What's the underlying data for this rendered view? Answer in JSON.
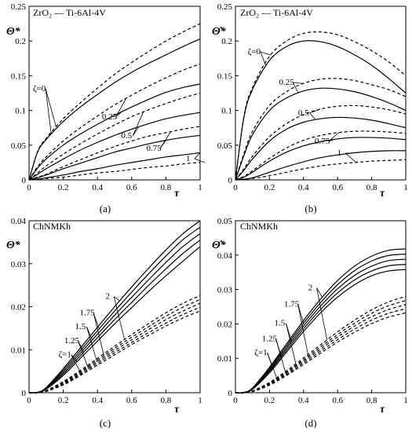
{
  "chart_data": [
    {
      "id": "a",
      "type": "line",
      "caption": "(a)",
      "material": "ZrO₂ — Ti-6Al-4V",
      "ylabel": "Θ*",
      "xlabel": "τ",
      "xlim": [
        0,
        1
      ],
      "ylim": [
        0,
        0.25
      ],
      "xticks": [
        "0",
        "0.2",
        "0.4",
        "0.6",
        "0.8",
        "1"
      ],
      "yticks": [
        "0",
        "0.05",
        "0.1",
        "0.15",
        "0.2",
        "0.25"
      ],
      "grid": false,
      "x": [
        0,
        0.05,
        0.1,
        0.2,
        0.3,
        0.4,
        0.5,
        0.6,
        0.7,
        0.8,
        0.9,
        1.0
      ],
      "series": [
        {
          "curve": "ζ=0",
          "style": "solid",
          "values": [
            0,
            0.04,
            0.058,
            0.084,
            0.105,
            0.123,
            0.14,
            0.155,
            0.168,
            0.18,
            0.192,
            0.203
          ]
        },
        {
          "curve": "ζ=0",
          "style": "dashed",
          "values": [
            0,
            0.041,
            0.06,
            0.088,
            0.111,
            0.132,
            0.152,
            0.169,
            0.185,
            0.2,
            0.213,
            0.225
          ]
        },
        {
          "curve": "0.25",
          "style": "solid",
          "values": [
            0,
            0.017,
            0.03,
            0.05,
            0.066,
            0.08,
            0.093,
            0.105,
            0.116,
            0.126,
            0.133,
            0.138
          ]
        },
        {
          "curve": "0.25",
          "style": "dashed",
          "values": [
            0,
            0.019,
            0.033,
            0.056,
            0.075,
            0.092,
            0.108,
            0.122,
            0.135,
            0.147,
            0.158,
            0.167
          ]
        },
        {
          "curve": "0.5",
          "style": "solid",
          "values": [
            0,
            0.008,
            0.016,
            0.03,
            0.043,
            0.054,
            0.064,
            0.073,
            0.081,
            0.088,
            0.093,
            0.097
          ]
        },
        {
          "curve": "0.5",
          "style": "dashed",
          "values": [
            0,
            0.01,
            0.02,
            0.037,
            0.052,
            0.066,
            0.079,
            0.091,
            0.101,
            0.11,
            0.118,
            0.125
          ]
        },
        {
          "curve": "0.75",
          "style": "solid",
          "values": [
            0,
            0.003,
            0.007,
            0.016,
            0.024,
            0.032,
            0.04,
            0.046,
            0.052,
            0.057,
            0.061,
            0.064
          ]
        },
        {
          "curve": "0.75",
          "style": "dashed",
          "values": [
            0,
            0.004,
            0.008,
            0.019,
            0.029,
            0.039,
            0.048,
            0.056,
            0.063,
            0.068,
            0.073,
            0.077
          ]
        },
        {
          "curve": "1",
          "style": "solid",
          "values": [
            0,
            0.001,
            0.003,
            0.007,
            0.012,
            0.016,
            0.021,
            0.025,
            0.029,
            0.033,
            0.036,
            0.039
          ]
        },
        {
          "curve": "1",
          "style": "dashed",
          "values": [
            0,
            0.001,
            0.002,
            0.004,
            0.007,
            0.01,
            0.012,
            0.015,
            0.018,
            0.02,
            0.023,
            0.025
          ]
        }
      ],
      "annotations": [
        {
          "text": "ζ=0",
          "x": 0.06,
          "y": 0.128
        },
        {
          "text": "0.25",
          "x": 0.47,
          "y": 0.087
        },
        {
          "text": "0.5",
          "x": 0.57,
          "y": 0.06
        },
        {
          "text": "0.75",
          "x": 0.73,
          "y": 0.042
        },
        {
          "text": "1",
          "x": 0.93,
          "y": 0.027
        }
      ]
    },
    {
      "id": "b",
      "type": "line",
      "caption": "(b)",
      "material": "ZrO₂ — Ti-6Al-4V",
      "ylabel": "Θ̂*",
      "xlabel": "τ",
      "xlim": [
        0,
        1
      ],
      "ylim": [
        0,
        0.25
      ],
      "xticks": [
        "0",
        "0.2",
        "0.4",
        "0.6",
        "0.8",
        "1"
      ],
      "yticks": [
        "0",
        "0.05",
        "0.1",
        "0.15",
        "0.2",
        "0.25"
      ],
      "grid": false,
      "x": [
        0,
        0.05,
        0.1,
        0.2,
        0.3,
        0.4,
        0.5,
        0.6,
        0.7,
        0.8,
        0.9,
        1.0
      ],
      "series": [
        {
          "curve": "ζ=0",
          "style": "solid",
          "values": [
            0,
            0.09,
            0.13,
            0.172,
            0.192,
            0.2,
            0.199,
            0.192,
            0.18,
            0.165,
            0.146,
            0.125
          ]
        },
        {
          "curve": "ζ=0",
          "style": "dashed",
          "values": [
            0,
            0.092,
            0.133,
            0.178,
            0.2,
            0.211,
            0.213,
            0.209,
            0.199,
            0.186,
            0.17,
            0.15
          ]
        },
        {
          "curve": "0.25",
          "style": "solid",
          "values": [
            0,
            0.035,
            0.065,
            0.1,
            0.118,
            0.128,
            0.132,
            0.131,
            0.127,
            0.12,
            0.111,
            0.1
          ]
        },
        {
          "curve": "0.25",
          "style": "dashed",
          "values": [
            0,
            0.038,
            0.07,
            0.107,
            0.127,
            0.139,
            0.145,
            0.146,
            0.143,
            0.137,
            0.13,
            0.12
          ]
        },
        {
          "curve": "0.5",
          "style": "solid",
          "values": [
            0,
            0.014,
            0.03,
            0.056,
            0.073,
            0.083,
            0.088,
            0.09,
            0.089,
            0.086,
            0.081,
            0.075
          ]
        },
        {
          "curve": "0.5",
          "style": "dashed",
          "values": [
            0,
            0.016,
            0.034,
            0.062,
            0.081,
            0.094,
            0.102,
            0.106,
            0.107,
            0.105,
            0.101,
            0.095
          ]
        },
        {
          "curve": "0.75",
          "style": "solid",
          "values": [
            0,
            0.004,
            0.011,
            0.027,
            0.04,
            0.049,
            0.055,
            0.059,
            0.061,
            0.061,
            0.06,
            0.058
          ]
        },
        {
          "curve": "0.75",
          "style": "dashed",
          "values": [
            0,
            0.005,
            0.013,
            0.031,
            0.046,
            0.057,
            0.064,
            0.068,
            0.07,
            0.07,
            0.069,
            0.067
          ]
        },
        {
          "curve": "1",
          "style": "solid",
          "values": [
            0,
            0.001,
            0.003,
            0.011,
            0.019,
            0.026,
            0.032,
            0.036,
            0.039,
            0.041,
            0.042,
            0.042
          ]
        },
        {
          "curve": "1",
          "style": "dashed",
          "values": [
            0,
            0.001,
            0.002,
            0.006,
            0.011,
            0.016,
            0.02,
            0.023,
            0.025,
            0.027,
            0.028,
            0.029
          ]
        }
      ],
      "annotations": [
        {
          "text": "ζ=0",
          "x": 0.11,
          "y": 0.181
        },
        {
          "text": "0.25",
          "x": 0.3,
          "y": 0.137
        },
        {
          "text": "0.5",
          "x": 0.4,
          "y": 0.093
        },
        {
          "text": "0.75",
          "x": 0.51,
          "y": 0.052
        },
        {
          "text": "1",
          "x": 0.61,
          "y": 0.035
        }
      ]
    },
    {
      "id": "c",
      "type": "line",
      "caption": "(c)",
      "material": "ChNMKh",
      "ylabel": "Θ*",
      "xlabel": "τ",
      "xlim": [
        0,
        1
      ],
      "ylim": [
        0,
        0.04
      ],
      "xticks": [
        "0",
        "0.2",
        "0.4",
        "0.6",
        "0.8",
        "1"
      ],
      "yticks": [
        "0",
        "0.01",
        "0.02",
        "0.03",
        "0.04"
      ],
      "grid": false,
      "x": [
        0,
        0.05,
        0.1,
        0.2,
        0.3,
        0.4,
        0.5,
        0.6,
        0.7,
        0.8,
        0.9,
        1.0
      ],
      "series": [
        {
          "curve": "ζ=1",
          "style": "solid",
          "values": [
            0,
            0.0001,
            0.0008,
            0.004,
            0.008,
            0.012,
            0.016,
            0.0198,
            0.0236,
            0.0272,
            0.0306,
            0.034
          ]
        },
        {
          "curve": "1.25",
          "style": "solid",
          "values": [
            0,
            0.0001,
            0.0009,
            0.0044,
            0.0086,
            0.0128,
            0.017,
            0.021,
            0.025,
            0.0288,
            0.0324,
            0.0355
          ]
        },
        {
          "curve": "1.5",
          "style": "solid",
          "values": [
            0,
            0.0001,
            0.001,
            0.0048,
            0.0092,
            0.0136,
            0.018,
            0.0222,
            0.0263,
            0.0303,
            0.034,
            0.037
          ]
        },
        {
          "curve": "1.75",
          "style": "solid",
          "values": [
            0,
            0.0001,
            0.0011,
            0.0052,
            0.0098,
            0.0144,
            0.019,
            0.0234,
            0.0277,
            0.0318,
            0.0356,
            0.0385
          ]
        },
        {
          "curve": "2",
          "style": "solid",
          "values": [
            0,
            0.0001,
            0.0012,
            0.0056,
            0.0104,
            0.0152,
            0.02,
            0.0246,
            0.029,
            0.0332,
            0.037,
            0.04
          ]
        },
        {
          "curve": "ζ=1",
          "style": "dashed",
          "values": [
            0,
            0.0,
            0.0003,
            0.0018,
            0.004,
            0.0064,
            0.0088,
            0.0112,
            0.0134,
            0.0155,
            0.0174,
            0.019
          ]
        },
        {
          "curve": "1.25",
          "style": "dashed",
          "values": [
            0,
            0.0,
            0.0003,
            0.002,
            0.0043,
            0.0068,
            0.0093,
            0.0117,
            0.014,
            0.0162,
            0.0182,
            0.0199
          ]
        },
        {
          "curve": "1.5",
          "style": "dashed",
          "values": [
            0,
            0.0,
            0.0004,
            0.0022,
            0.0046,
            0.0072,
            0.0098,
            0.0123,
            0.0147,
            0.017,
            0.019,
            0.0208
          ]
        },
        {
          "curve": "1.75",
          "style": "dashed",
          "values": [
            0,
            0.0,
            0.0004,
            0.0024,
            0.0049,
            0.0076,
            0.0103,
            0.0129,
            0.0154,
            0.0178,
            0.0199,
            0.0217
          ]
        },
        {
          "curve": "2",
          "style": "dashed",
          "values": [
            0,
            0.0,
            0.0005,
            0.0026,
            0.0052,
            0.008,
            0.0108,
            0.0135,
            0.0161,
            0.0186,
            0.0208,
            0.0226
          ]
        }
      ],
      "annotations": [
        {
          "text": "ζ=1",
          "x": 0.21,
          "y": 0.0083
        },
        {
          "text": "1.25",
          "x": 0.25,
          "y": 0.0115
        },
        {
          "text": "1.5",
          "x": 0.3,
          "y": 0.0148
        },
        {
          "text": "1.75",
          "x": 0.34,
          "y": 0.018
        },
        {
          "text": "2",
          "x": 0.46,
          "y": 0.0218
        }
      ]
    },
    {
      "id": "d",
      "type": "line",
      "caption": "(d)",
      "material": "ChNMKh",
      "ylabel": "Θ̂*",
      "xlabel": "τ",
      "xlim": [
        0,
        1
      ],
      "ylim": [
        0,
        0.05
      ],
      "xticks": [
        "0",
        "0.2",
        "0.4",
        "0.6",
        "0.8",
        "1"
      ],
      "yticks": [
        "0",
        "0.01",
        "0.02",
        "0.03",
        "0.04",
        "0.05"
      ],
      "grid": false,
      "x": [
        0,
        0.05,
        0.1,
        0.2,
        0.3,
        0.4,
        0.5,
        0.6,
        0.7,
        0.8,
        0.9,
        1.0
      ],
      "series": [
        {
          "curve": "ζ=1",
          "style": "solid",
          "values": [
            0,
            0.0001,
            0.001,
            0.0058,
            0.0118,
            0.0178,
            0.0232,
            0.0278,
            0.0314,
            0.034,
            0.0354,
            0.0358
          ]
        },
        {
          "curve": "1.25",
          "style": "solid",
          "values": [
            0,
            0.0001,
            0.0011,
            0.0062,
            0.0124,
            0.0186,
            0.0242,
            0.029,
            0.0328,
            0.0354,
            0.0369,
            0.0373
          ]
        },
        {
          "curve": "1.5",
          "style": "solid",
          "values": [
            0,
            0.0001,
            0.0012,
            0.0066,
            0.013,
            0.0194,
            0.0252,
            0.0302,
            0.0341,
            0.0368,
            0.0384,
            0.0388
          ]
        },
        {
          "curve": "1.75",
          "style": "solid",
          "values": [
            0,
            0.0001,
            0.0013,
            0.007,
            0.0136,
            0.0202,
            0.0262,
            0.0314,
            0.0355,
            0.0383,
            0.0399,
            0.0403
          ]
        },
        {
          "curve": "2",
          "style": "solid",
          "values": [
            0,
            0.0001,
            0.0014,
            0.0074,
            0.0142,
            0.021,
            0.0272,
            0.0326,
            0.0368,
            0.0397,
            0.0414,
            0.0418
          ]
        },
        {
          "curve": "ζ=1",
          "style": "dashed",
          "values": [
            0,
            0.0,
            0.0003,
            0.0022,
            0.005,
            0.0082,
            0.0115,
            0.0147,
            0.0176,
            0.0201,
            0.022,
            0.0232
          ]
        },
        {
          "curve": "1.25",
          "style": "dashed",
          "values": [
            0,
            0.0,
            0.0004,
            0.0024,
            0.0053,
            0.0087,
            0.0121,
            0.0154,
            0.0185,
            0.0211,
            0.0231,
            0.0244
          ]
        },
        {
          "curve": "1.5",
          "style": "dashed",
          "values": [
            0,
            0.0,
            0.0004,
            0.0026,
            0.0057,
            0.0092,
            0.0127,
            0.0162,
            0.0194,
            0.0221,
            0.0242,
            0.0256
          ]
        },
        {
          "curve": "1.75",
          "style": "dashed",
          "values": [
            0,
            0.0,
            0.0005,
            0.0028,
            0.006,
            0.0096,
            0.0133,
            0.0169,
            0.0202,
            0.0231,
            0.0253,
            0.0268
          ]
        },
        {
          "curve": "2",
          "style": "dashed",
          "values": [
            0,
            0.0,
            0.0005,
            0.003,
            0.0064,
            0.0101,
            0.0139,
            0.0177,
            0.0211,
            0.0241,
            0.0264,
            0.028
          ]
        }
      ],
      "annotations": [
        {
          "text": "ζ=1",
          "x": 0.15,
          "y": 0.011
        },
        {
          "text": "1.25",
          "x": 0.2,
          "y": 0.015
        },
        {
          "text": "1.5",
          "x": 0.26,
          "y": 0.0195
        },
        {
          "text": "1.75",
          "x": 0.33,
          "y": 0.025
        },
        {
          "text": "2",
          "x": 0.44,
          "y": 0.0298
        }
      ]
    }
  ]
}
